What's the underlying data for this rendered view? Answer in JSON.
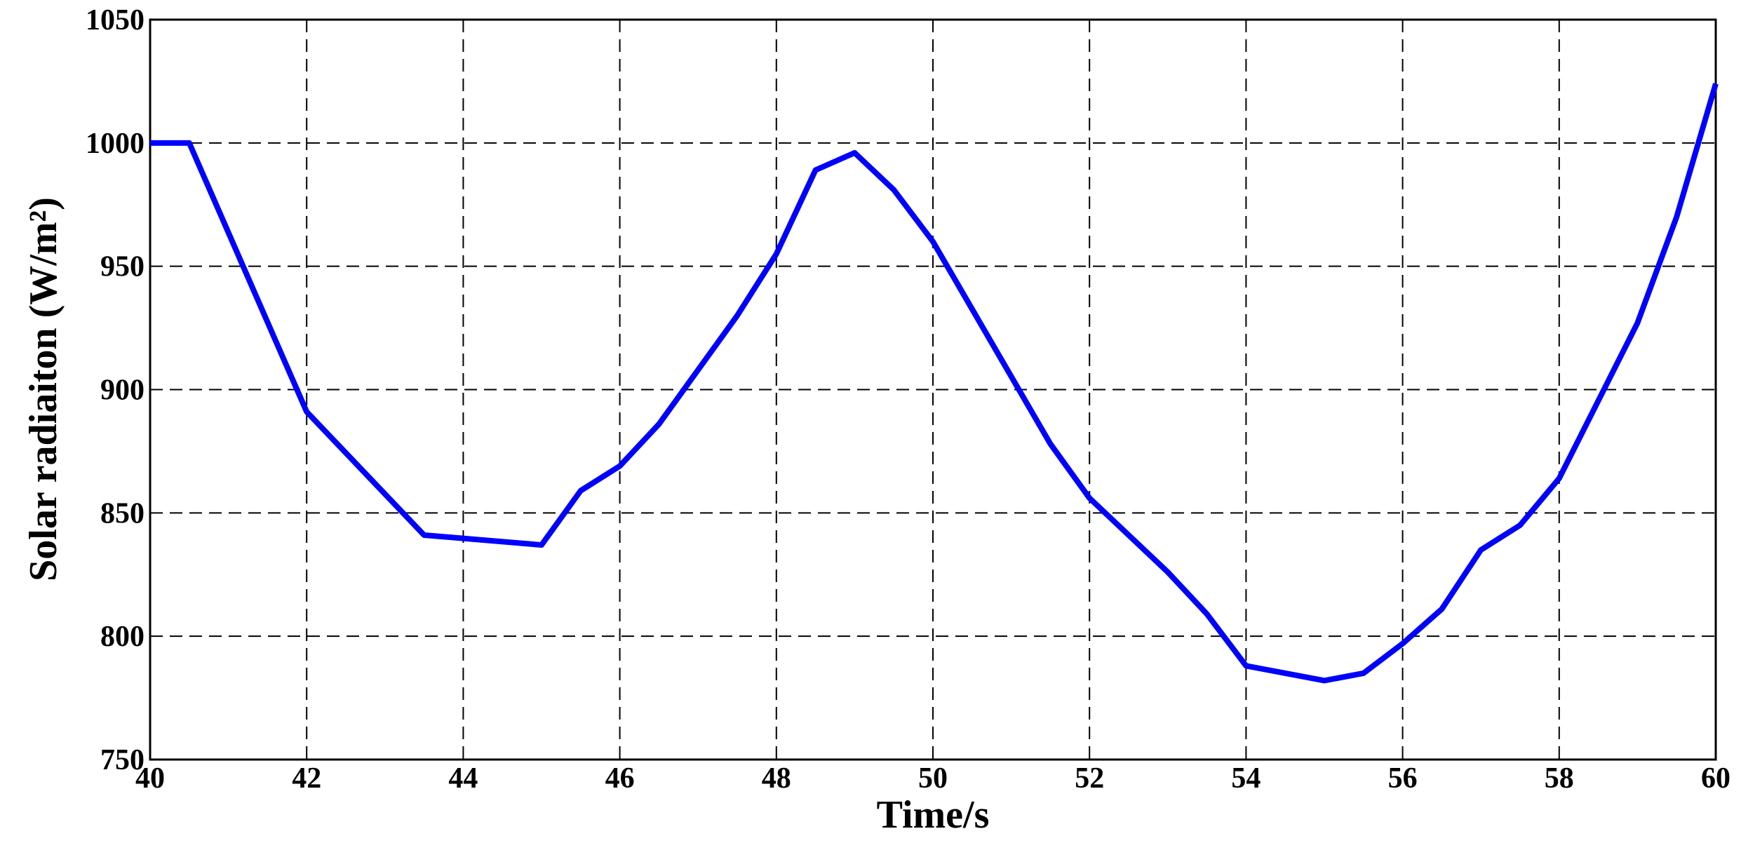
{
  "chart_data": {
    "type": "line",
    "xlabel": "Time/s",
    "ylabel": "Solar radiaiton (W/m²)",
    "x": [
      40,
      40.5,
      42,
      43.5,
      45,
      45.5,
      46,
      46.5,
      47.5,
      48,
      48.5,
      49,
      49.5,
      50,
      51.5,
      52,
      53,
      53.5,
      54,
      55,
      55.5,
      56,
      56.5,
      57,
      57.5,
      58,
      59,
      59.5,
      60
    ],
    "series": [
      {
        "color": "#0000ff",
        "values": [
          1000,
          1000,
          891,
          841,
          837,
          859,
          869,
          886,
          930,
          955,
          989,
          996,
          981,
          960,
          878,
          856,
          826,
          809,
          788,
          782,
          785,
          797,
          811,
          835,
          845,
          864,
          927,
          970,
          1024
        ]
      }
    ],
    "xlim": [
      40,
      60
    ],
    "xticks": [
      40,
      42,
      44,
      46,
      48,
      50,
      52,
      54,
      56,
      58,
      60
    ],
    "ylim": [
      750,
      1050
    ],
    "yticks": [
      750,
      800,
      850,
      900,
      950,
      1000,
      1050
    ],
    "grid": true
  }
}
